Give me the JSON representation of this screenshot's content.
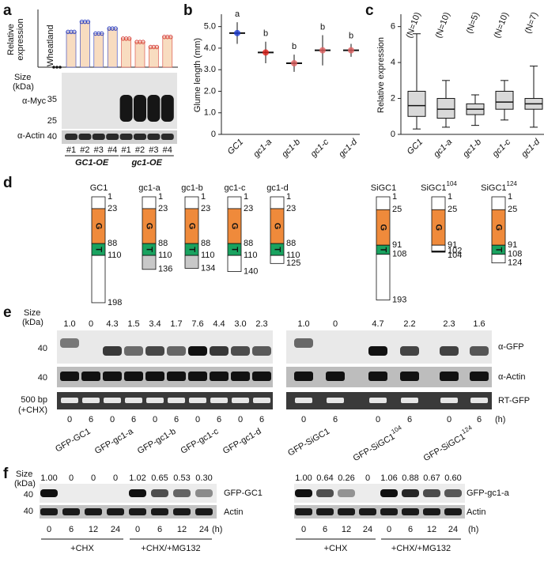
{
  "panel_labels": [
    "a",
    "b",
    "c",
    "d",
    "e",
    "f"
  ],
  "chart_data": [
    {
      "type": "bar",
      "y_label": [
        "Relative",
        "expression"
      ],
      "control": {
        "label": "Wheatland",
        "value": 0
      },
      "values": [
        2.1,
        2.7,
        2.0,
        2.3,
        1.7,
        1.5,
        1.2,
        1.8
      ],
      "ylim": [
        0,
        3.2
      ],
      "group_colors": [
        "#2e3fbd",
        "#d7453d"
      ],
      "bar_color": "#f8dcc0"
    },
    {
      "type": "dot",
      "y_label": "Glume length (mm)",
      "categories": [
        "GC1",
        "gc1-a",
        "gc1-b",
        "gc1-c",
        "gc1-d"
      ],
      "values": [
        4.7,
        3.8,
        3.3,
        3.9,
        3.9
      ],
      "errors": [
        0.5,
        0.5,
        0.4,
        0.7,
        0.3
      ],
      "letters": [
        "a",
        "b",
        "b",
        "b",
        "b"
      ],
      "colors": [
        "#1f3fd6",
        "#e0201a",
        "#e06060",
        "#e06060",
        "#e06060"
      ],
      "ylim": [
        0,
        5.5
      ],
      "yticks": [
        0,
        {
          "value": 1,
          "label": "1.0"
        },
        {
          "value": 2,
          "label": "2.0"
        },
        {
          "value": 3,
          "label": "3.0"
        },
        {
          "value": 4,
          "label": "4.0"
        },
        {
          "value": 5,
          "label": "5.0"
        }
      ]
    },
    {
      "type": "box",
      "y_label": "Relative expression",
      "categories": [
        "GC1",
        "gc1-a",
        "gc1-b",
        "gc1-c",
        "gc1-d"
      ],
      "n_labels": [
        "(N=10)",
        "(N=10)",
        "(N=5)",
        "(N=10)",
        "(N=7)"
      ],
      "boxes": [
        {
          "min": 0.3,
          "q1": 1.0,
          "median": 1.6,
          "q3": 2.4,
          "max": 5.6
        },
        {
          "min": 0.4,
          "q1": 0.9,
          "median": 1.4,
          "q3": 2.0,
          "max": 3.0
        },
        {
          "min": 0.5,
          "q1": 1.1,
          "median": 1.4,
          "q3": 1.7,
          "max": 2.2
        },
        {
          "min": 0.8,
          "q1": 1.4,
          "median": 1.8,
          "q3": 2.4,
          "max": 3.0
        },
        {
          "min": 0.4,
          "q1": 1.4,
          "median": 1.7,
          "q3": 2.0,
          "max": 3.8
        }
      ],
      "ylim": [
        0,
        6.6
      ],
      "yticks": [
        0,
        2,
        4,
        6
      ],
      "box_color": "#d9d9d9"
    }
  ],
  "blot_a": {
    "size_label": [
      "Size",
      "(kDa)"
    ],
    "markers": [
      "35",
      "25",
      "40"
    ],
    "antibodies": [
      "α-Myc",
      "α-Actin"
    ],
    "lanes": [
      "#1",
      "#2",
      "#3",
      "#4",
      "#1",
      "#2",
      "#3",
      "#4"
    ],
    "groups": [
      "GC1-OE",
      "gc1-OE"
    ]
  },
  "panel_d": {
    "domains": [
      {
        "label": "G",
        "fill": "#ef8a3b"
      },
      {
        "label": "T",
        "fill": "#19a25f"
      }
    ],
    "constructs": [
      {
        "name": "GC1",
        "positions": [
          1,
          23,
          88,
          110,
          198
        ],
        "fills": [
          "#ffffff",
          "#ef8a3b",
          "#19a25f",
          "#ffffff"
        ]
      },
      {
        "name": "gc1-a",
        "positions": [
          1,
          23,
          88,
          110,
          136
        ],
        "fills": [
          "#ffffff",
          "#ef8a3b",
          "#19a25f",
          "#c8c8c8"
        ]
      },
      {
        "name": "gc1-b",
        "positions": [
          1,
          23,
          88,
          110,
          134
        ],
        "fills": [
          "#ffffff",
          "#ef8a3b",
          "#19a25f",
          "#c8c8c8"
        ]
      },
      {
        "name": "gc1-c",
        "positions": [
          1,
          23,
          88,
          110,
          140
        ],
        "fills": [
          "#ffffff",
          "#ef8a3b",
          "#19a25f",
          "#ffffff"
        ]
      },
      {
        "name": "gc1-d",
        "positions": [
          1,
          23,
          88,
          110,
          125
        ],
        "fills": [
          "#ffffff",
          "#ef8a3b",
          "#19a25f",
          "#ffffff"
        ]
      },
      {
        "name": "SiGC1",
        "positions": [
          1,
          25,
          91,
          108,
          193
        ],
        "fills": [
          "#ffffff",
          "#ef8a3b",
          "#19a25f",
          "#ffffff"
        ]
      },
      {
        "name": "SiGC1",
        "sup": "104",
        "positions": [
          1,
          25,
          91,
          102,
          104
        ],
        "fills": [
          "#ffffff",
          "#ef8a3b",
          "#ffffff",
          "#000000"
        ]
      },
      {
        "name": "SiGC1",
        "sup": "124",
        "positions": [
          1,
          25,
          91,
          108,
          124
        ],
        "fills": [
          "#ffffff",
          "#ef8a3b",
          "#19a25f",
          "#ffffff"
        ]
      }
    ]
  },
  "panel_e": {
    "size_label": [
      "Size",
      "(kDa)"
    ],
    "markers": [
      "40",
      "40"
    ],
    "rt_marker": [
      "500 bp",
      "(+CHX)"
    ],
    "labels": [
      "α-GFP",
      "α-Actin",
      "RT-GFP"
    ],
    "unit": "(h)",
    "left": {
      "quant": [
        "1.0",
        "0",
        "4.3",
        "1.5",
        "3.4",
        "1.7",
        "7.6",
        "4.4",
        "3.0",
        "2.3"
      ],
      "times": [
        "0",
        "6",
        "0",
        "6",
        "0",
        "6",
        "0",
        "6",
        "0",
        "6"
      ],
      "constructs": [
        {
          "name": "GFP-GC1"
        },
        {
          "name": "GFP-gc1-a"
        },
        {
          "name": "GFP-gc1-b"
        },
        {
          "name": "GFP-gc1-c"
        },
        {
          "name": "GFP-gc1-d"
        }
      ]
    },
    "right": {
      "quant": [
        "1.0",
        "0",
        "4.7",
        "2.2",
        "2.3",
        "1.6"
      ],
      "times": [
        "0",
        "6",
        "0",
        "6",
        "0",
        "6"
      ],
      "constructs": [
        {
          "name": "GFP-SiGC1"
        },
        {
          "name": "GFP-SiGC1",
          "sup": "104"
        },
        {
          "name": "GFP-SiGC1",
          "sup": "124"
        }
      ]
    }
  },
  "panel_f": {
    "size_label": [
      "Size",
      "(kDa)"
    ],
    "markers": [
      "40",
      "40"
    ],
    "unit": "(h)",
    "groups": [
      "+CHX",
      "+CHX/+MG132"
    ],
    "times": [
      "0",
      "6",
      "12",
      "24",
      "0",
      "6",
      "12",
      "24"
    ],
    "left": {
      "quant": [
        "1.00",
        "0",
        "0",
        "0",
        "1.02",
        "0.65",
        "0.53",
        "0.30"
      ],
      "labels": [
        "GFP-GC1",
        "Actin"
      ]
    },
    "right": {
      "quant": [
        "1.00",
        "0.64",
        "0.26",
        "0",
        "1.06",
        "0.88",
        "0.67",
        "0.60"
      ],
      "labels": [
        "GFP-gc1-a",
        "Actin"
      ]
    }
  }
}
